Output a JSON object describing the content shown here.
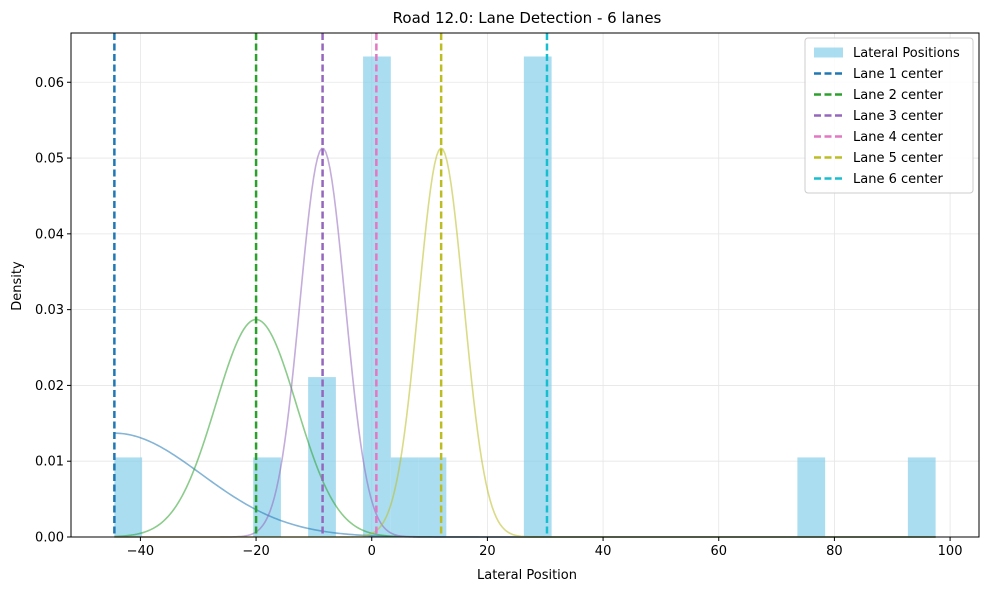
{
  "chart_data": {
    "type": "bar",
    "title": "Road 12.0: Lane Detection - 6 lanes",
    "xlabel": "Lateral Position",
    "ylabel": "Density",
    "xlim": [
      -52,
      105
    ],
    "ylim": [
      0,
      0.0665
    ],
    "xticks": [
      -40,
      -20,
      0,
      20,
      40,
      60,
      80,
      100
    ],
    "yticks": [
      0.0,
      0.01,
      0.02,
      0.03,
      0.04,
      0.05,
      0.06
    ],
    "xtick_labels": [
      "−40",
      "−20",
      "0",
      "20",
      "40",
      "60",
      "80",
      "100"
    ],
    "ytick_labels": [
      "0.00",
      "0.01",
      "0.02",
      "0.03",
      "0.04",
      "0.05",
      "0.06"
    ],
    "grid": true,
    "legend_position": "top-right",
    "histogram": {
      "name": "Lateral Positions",
      "color": "#87CEEB",
      "bins": [
        {
          "x0": -44.5,
          "x1": -39.7,
          "density": 0.0105
        },
        {
          "x0": -20.5,
          "x1": -15.7,
          "density": 0.0105
        },
        {
          "x0": -11.0,
          "x1": -6.2,
          "density": 0.0211
        },
        {
          "x0": -1.5,
          "x1": 3.3,
          "density": 0.0634
        },
        {
          "x0": 3.3,
          "x1": 8.1,
          "density": 0.0105
        },
        {
          "x0": 8.1,
          "x1": 12.9,
          "density": 0.0105
        },
        {
          "x0": 26.3,
          "x1": 31.1,
          "density": 0.0634
        },
        {
          "x0": 73.6,
          "x1": 78.4,
          "density": 0.0105
        },
        {
          "x0": 92.7,
          "x1": 97.5,
          "density": 0.0105
        }
      ]
    },
    "lanes": [
      {
        "name": "Lane 1 center",
        "center": -44.5,
        "color": "#1f77b4",
        "peak": 0.0137,
        "sigma": 15.0
      },
      {
        "name": "Lane 2 center",
        "center": -20.0,
        "color": "#2ca02c",
        "peak": 0.0287,
        "sigma": 7.0
      },
      {
        "name": "Lane 3 center",
        "center": -8.5,
        "color": "#9467bd",
        "peak": 0.0513,
        "sigma": 3.9
      },
      {
        "name": "Lane 4 center",
        "center": 0.8,
        "color": "#e377c2",
        "peak": null,
        "sigma": null
      },
      {
        "name": "Lane 5 center",
        "center": 12.0,
        "color": "#bcbd22",
        "peak": 0.0513,
        "sigma": 3.9
      },
      {
        "name": "Lane 6 center",
        "center": 30.3,
        "color": "#17becf",
        "peak": null,
        "sigma": null
      }
    ],
    "curve_range": [
      -44.5,
      97.5
    ]
  }
}
